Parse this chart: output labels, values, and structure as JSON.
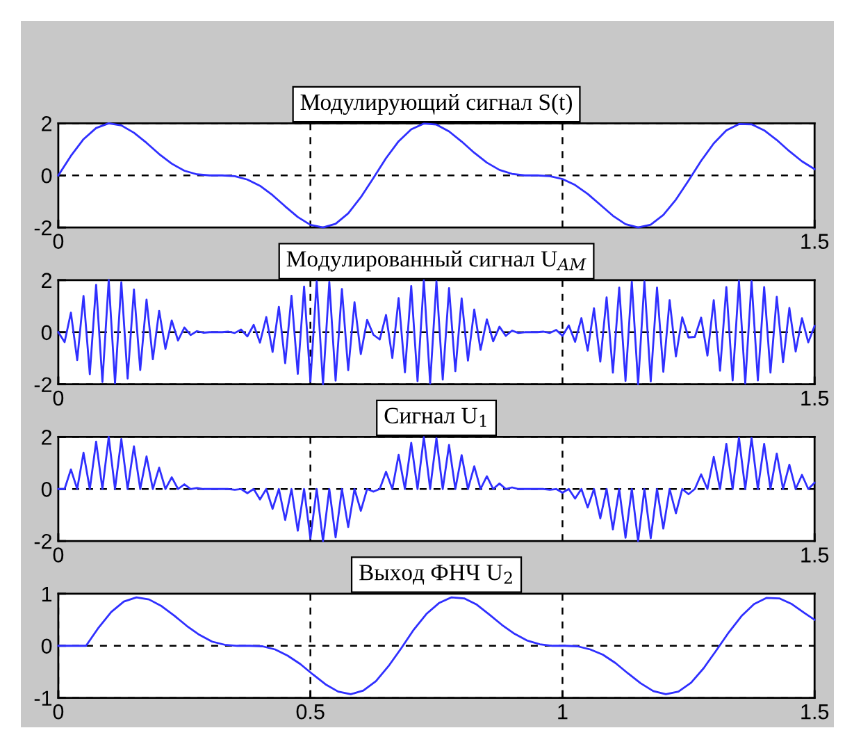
{
  "chart_data": [
    {
      "type": "line",
      "title": "Модулирующий сигнал S(t)",
      "grid": "y",
      "xlim": [
        0,
        1.5
      ],
      "ylim": [
        -2,
        2
      ],
      "xticks": [
        0,
        1.5
      ],
      "yticks": [
        -2,
        0,
        2
      ],
      "ref_lines": [
        {
          "axis": "x",
          "value": 0.5,
          "color": "#000000",
          "line_style": "dashed"
        },
        {
          "axis": "x",
          "value": 1,
          "color": "#000000",
          "line_style": "dashed"
        }
      ],
      "x": [
        0,
        0.025,
        0.05,
        0.075,
        0.1,
        0.125,
        0.15,
        0.175,
        0.2,
        0.225,
        0.25,
        0.275,
        0.3,
        0.325,
        0.35,
        0.375,
        0.4,
        0.425,
        0.45,
        0.475,
        0.5,
        0.525,
        0.55,
        0.575,
        0.6,
        0.625,
        0.65,
        0.675,
        0.7,
        0.725,
        0.75,
        0.775,
        0.8,
        0.825,
        0.85,
        0.875,
        0.9,
        0.925,
        0.95,
        0.975,
        1,
        1.025,
        1.05,
        1.075,
        1.1,
        1.125,
        1.15,
        1.175,
        1.2,
        1.225,
        1.25,
        1.275,
        1.3,
        1.325,
        1.35,
        1.375,
        1.4,
        1.425,
        1.45,
        1.475,
        1.5
      ],
      "series": [
        {
          "color": "#2f2fff",
          "values": [
            0,
            0.75,
            1.39,
            1.82,
            2.0,
            1.92,
            1.64,
            1.25,
            0.82,
            0.45,
            0.18,
            0.04,
            0,
            0,
            -0.03,
            -0.16,
            -0.4,
            -0.76,
            -1.19,
            -1.6,
            -1.9,
            -2.0,
            -1.86,
            -1.46,
            -0.84,
            -0.1,
            0.66,
            1.31,
            1.77,
            1.99,
            1.95,
            1.69,
            1.3,
            0.87,
            0.49,
            0.21,
            0.06,
            0,
            0,
            -0.03,
            -0.14,
            -0.37,
            -0.71,
            -1.13,
            -1.55,
            -1.87,
            -2.0,
            -1.89,
            -1.52,
            -0.93,
            -0.2,
            0.56,
            1.23,
            1.73,
            1.97,
            1.96,
            1.73,
            1.36,
            0.93,
            0.54,
            0.24
          ]
        }
      ]
    },
    {
      "type": "line",
      "title": "Модулированный сигнал U$_{AM}$",
      "grid": "y",
      "xlim": [
        0,
        1.5
      ],
      "ylim": [
        -2,
        2
      ],
      "xticks": [
        0,
        1.5
      ],
      "yticks": [
        -2,
        0,
        2
      ],
      "ref_lines": [
        {
          "axis": "x",
          "value": 0.5,
          "color": "#000000",
          "line_style": "dashed"
        },
        {
          "axis": "x",
          "value": 1,
          "color": "#000000",
          "line_style": "dashed"
        }
      ],
      "x": [
        0,
        0.0125,
        0.025,
        0.0375,
        0.05,
        0.0625,
        0.075,
        0.0875,
        0.1,
        0.1125,
        0.125,
        0.1375,
        0.15,
        0.1625,
        0.175,
        0.1875,
        0.2,
        0.2125,
        0.225,
        0.2375,
        0.25,
        0.2625,
        0.275,
        0.2875,
        0.3,
        0.3125,
        0.325,
        0.3375,
        0.35,
        0.3625,
        0.375,
        0.3875,
        0.4,
        0.4125,
        0.425,
        0.4375,
        0.45,
        0.4625,
        0.475,
        0.4875,
        0.5,
        0.5125,
        0.525,
        0.5375,
        0.55,
        0.5625,
        0.575,
        0.5875,
        0.6,
        0.6125,
        0.625,
        0.6375,
        0.65,
        0.6625,
        0.675,
        0.6875,
        0.7,
        0.7125,
        0.725,
        0.7375,
        0.75,
        0.7625,
        0.775,
        0.7875,
        0.8,
        0.8125,
        0.825,
        0.8375,
        0.85,
        0.8625,
        0.875,
        0.8875,
        0.9,
        0.9125,
        0.925,
        0.9375,
        0.95,
        0.9625,
        0.975,
        0.9875,
        1,
        1.0125,
        1.025,
        1.0375,
        1.05,
        1.0625,
        1.075,
        1.0875,
        1.1,
        1.1125,
        1.125,
        1.1375,
        1.15,
        1.1625,
        1.175,
        1.1875,
        1.2,
        1.2125,
        1.225,
        1.2375,
        1.25,
        1.2625,
        1.275,
        1.2875,
        1.3,
        1.3125,
        1.325,
        1.3375,
        1.35,
        1.3625,
        1.375,
        1.3875,
        1.4,
        1.4125,
        1.425,
        1.4375,
        1.45,
        1.4625,
        1.475,
        1.4875,
        1.5
      ],
      "series": [
        {
          "color": "#2f2fff",
          "values": [
            0,
            -0.38,
            0.75,
            -1.07,
            1.39,
            -1.61,
            1.82,
            -1.91,
            2.0,
            -1.96,
            1.92,
            -1.78,
            1.64,
            -1.45,
            1.25,
            -1.04,
            0.82,
            -0.64,
            0.45,
            -0.32,
            0.18,
            -0.11,
            0.04,
            -0.02,
            0,
            0,
            0,
            0.02,
            -0.03,
            0.1,
            -0.16,
            0.28,
            -0.4,
            0.58,
            -0.76,
            0.98,
            -1.19,
            1.4,
            -1.6,
            1.75,
            -1.9,
            1.95,
            -2.0,
            1.93,
            -1.86,
            1.66,
            -1.46,
            1.15,
            -0.84,
            0.47,
            -0.1,
            -0.28,
            0.66,
            -0.99,
            1.31,
            -1.54,
            1.77,
            -1.88,
            1.99,
            -1.97,
            1.95,
            -1.82,
            1.69,
            -1.5,
            1.3,
            -1.09,
            0.87,
            -0.68,
            0.49,
            -0.35,
            0.21,
            -0.14,
            0.06,
            -0.03,
            0,
            0,
            0,
            0.02,
            -0.03,
            0.09,
            -0.14,
            0.26,
            -0.37,
            0.54,
            -0.71,
            0.92,
            -1.13,
            1.34,
            -1.55,
            1.71,
            -1.87,
            1.94,
            -2.0,
            1.95,
            -1.89,
            1.71,
            -1.52,
            1.23,
            -0.93,
            0.57,
            -0.2,
            -0.18,
            0.56,
            -0.9,
            1.23,
            -1.48,
            1.73,
            -1.85,
            1.97,
            -1.97,
            1.96,
            -1.85,
            1.73,
            -1.55,
            1.36,
            -1.15,
            0.93,
            -0.74,
            0.54,
            -0.39,
            0.24
          ]
        }
      ]
    },
    {
      "type": "line",
      "title": "Сигнал U$_{1}$",
      "grid": "y",
      "xlim": [
        0,
        1.5
      ],
      "ylim": [
        -2,
        2
      ],
      "xticks": [
        0,
        1.5
      ],
      "yticks": [
        -2,
        0,
        2
      ],
      "ref_lines": [
        {
          "axis": "x",
          "value": 0.5,
          "color": "#000000",
          "line_style": "dashed"
        },
        {
          "axis": "x",
          "value": 1,
          "color": "#000000",
          "line_style": "dashed"
        }
      ],
      "x": [
        0,
        0.0125,
        0.025,
        0.0375,
        0.05,
        0.0625,
        0.075,
        0.0875,
        0.1,
        0.1125,
        0.125,
        0.1375,
        0.15,
        0.1625,
        0.175,
        0.1875,
        0.2,
        0.2125,
        0.225,
        0.2375,
        0.25,
        0.2625,
        0.275,
        0.2875,
        0.3,
        0.3125,
        0.325,
        0.3375,
        0.35,
        0.3625,
        0.375,
        0.3875,
        0.4,
        0.4125,
        0.425,
        0.4375,
        0.45,
        0.4625,
        0.475,
        0.4875,
        0.5,
        0.5125,
        0.525,
        0.5375,
        0.55,
        0.5625,
        0.575,
        0.5875,
        0.6,
        0.6125,
        0.625,
        0.6375,
        0.65,
        0.6625,
        0.675,
        0.6875,
        0.7,
        0.7125,
        0.725,
        0.7375,
        0.75,
        0.7625,
        0.775,
        0.7875,
        0.8,
        0.8125,
        0.825,
        0.8375,
        0.85,
        0.8625,
        0.875,
        0.8875,
        0.9,
        0.9125,
        0.925,
        0.9375,
        0.95,
        0.9625,
        0.975,
        0.9875,
        1,
        1.0125,
        1.025,
        1.0375,
        1.05,
        1.0625,
        1.075,
        1.0875,
        1.1,
        1.1125,
        1.125,
        1.1375,
        1.15,
        1.1625,
        1.175,
        1.1875,
        1.2,
        1.2125,
        1.225,
        1.2375,
        1.25,
        1.2625,
        1.275,
        1.2875,
        1.3,
        1.3125,
        1.325,
        1.3375,
        1.35,
        1.3625,
        1.375,
        1.3875,
        1.4,
        1.4125,
        1.425,
        1.4375,
        1.45,
        1.4625,
        1.475,
        1.4875,
        1.5
      ],
      "series": [
        {
          "color": "#2f2fff",
          "values": [
            0,
            0,
            0.75,
            0,
            1.39,
            0,
            1.82,
            0,
            2.0,
            0,
            1.92,
            0,
            1.64,
            0,
            1.25,
            0,
            0.82,
            0,
            0.45,
            0,
            0.18,
            0,
            0.04,
            0,
            0,
            0,
            0,
            0,
            -0.03,
            0,
            -0.16,
            0,
            -0.4,
            0,
            -0.76,
            0,
            -1.19,
            0,
            -1.6,
            0,
            -1.9,
            0,
            -2.0,
            0,
            -1.86,
            0,
            -1.46,
            0,
            -0.84,
            0,
            -0.1,
            0,
            0.66,
            0,
            1.31,
            0,
            1.77,
            0,
            1.99,
            0,
            1.95,
            0,
            1.69,
            0,
            1.3,
            0,
            0.87,
            0,
            0.49,
            0,
            0.21,
            0,
            0.06,
            0,
            0,
            0,
            0,
            0,
            -0.03,
            0,
            -0.14,
            0,
            -0.37,
            0,
            -0.71,
            0,
            -1.13,
            0,
            -1.55,
            0,
            -1.87,
            0,
            -2.0,
            0,
            -1.89,
            0,
            -1.52,
            0,
            -0.93,
            0,
            -0.2,
            0,
            0.56,
            0,
            1.23,
            0,
            1.73,
            0,
            1.97,
            0,
            1.96,
            0,
            1.73,
            0,
            1.36,
            0,
            0.93,
            0,
            0.54,
            0,
            0.24
          ]
        }
      ]
    },
    {
      "type": "line",
      "title": "Выход ФНЧ U$_{2}$",
      "grid": true,
      "xlim": [
        0,
        1.5
      ],
      "ylim": [
        -1,
        1
      ],
      "xticks": [
        0,
        0.5,
        1,
        1.5
      ],
      "yticks": [
        -1,
        0,
        1
      ],
      "x": [
        0,
        0.03,
        0.055,
        0.08,
        0.105,
        0.13,
        0.155,
        0.18,
        0.205,
        0.23,
        0.255,
        0.28,
        0.305,
        0.33,
        0.355,
        0.38,
        0.405,
        0.43,
        0.455,
        0.48,
        0.505,
        0.53,
        0.555,
        0.58,
        0.605,
        0.63,
        0.655,
        0.68,
        0.705,
        0.73,
        0.755,
        0.78,
        0.805,
        0.83,
        0.855,
        0.88,
        0.905,
        0.93,
        0.955,
        0.98,
        1.005,
        1.03,
        1.055,
        1.08,
        1.105,
        1.13,
        1.155,
        1.18,
        1.205,
        1.23,
        1.255,
        1.28,
        1.305,
        1.33,
        1.355,
        1.38,
        1.405,
        1.43,
        1.455,
        1.48,
        1.5
      ],
      "series": [
        {
          "color": "#2f2fff",
          "values": [
            0,
            0,
            0,
            0.35,
            0.65,
            0.85,
            0.93,
            0.89,
            0.76,
            0.58,
            0.38,
            0.21,
            0.08,
            0.02,
            0,
            0,
            -0.01,
            -0.07,
            -0.19,
            -0.35,
            -0.55,
            -0.74,
            -0.88,
            -0.93,
            -0.86,
            -0.68,
            -0.39,
            -0.05,
            0.31,
            0.61,
            0.82,
            0.93,
            0.91,
            0.79,
            0.6,
            0.4,
            0.23,
            0.1,
            0.03,
            0,
            0,
            -0.01,
            -0.07,
            -0.17,
            -0.33,
            -0.53,
            -0.72,
            -0.87,
            -0.93,
            -0.88,
            -0.71,
            -0.43,
            -0.09,
            0.26,
            0.57,
            0.8,
            0.92,
            0.91,
            0.8,
            0.63,
            0.5
          ]
        }
      ]
    }
  ]
}
